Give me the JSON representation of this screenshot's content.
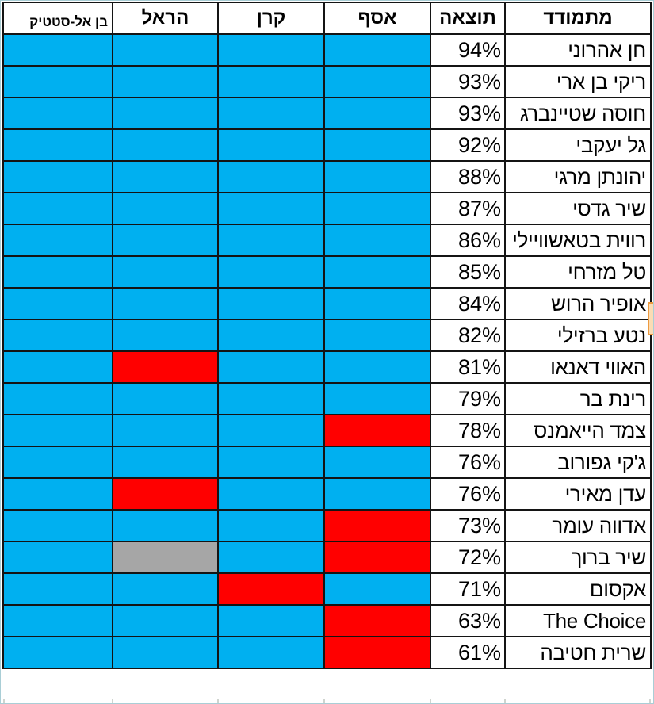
{
  "table": {
    "header": {
      "contestant": "מתמודד",
      "result": "תוצאה",
      "judges": [
        {
          "key": "asaf",
          "label": "אסף"
        },
        {
          "key": "keren",
          "label": "קרן"
        },
        {
          "key": "harel",
          "label": "הראל"
        },
        {
          "key": "ben-el-static",
          "label": "בן אל-סטטיק"
        }
      ]
    },
    "rows": [
      {
        "name": "חן אהרוני",
        "result": "94%",
        "votes": [
          "blue",
          "blue",
          "blue",
          "blue"
        ]
      },
      {
        "name": "ריקי בן ארי",
        "result": "93%",
        "votes": [
          "blue",
          "blue",
          "blue",
          "blue"
        ]
      },
      {
        "name": "חוסה שטיינברג",
        "result": "93%",
        "votes": [
          "blue",
          "blue",
          "blue",
          "blue"
        ]
      },
      {
        "name": "גל יעקבי",
        "result": "92%",
        "votes": [
          "blue",
          "blue",
          "blue",
          "blue"
        ]
      },
      {
        "name": "יהונתן מרגי",
        "result": "88%",
        "votes": [
          "blue",
          "blue",
          "blue",
          "blue"
        ]
      },
      {
        "name": "שיר גדסי",
        "result": "87%",
        "votes": [
          "blue",
          "blue",
          "blue",
          "blue"
        ]
      },
      {
        "name": "רווית בטאשוויילי",
        "result": "86%",
        "votes": [
          "blue",
          "blue",
          "blue",
          "blue"
        ]
      },
      {
        "name": "טל מזרחי",
        "result": "85%",
        "votes": [
          "blue",
          "blue",
          "blue",
          "blue"
        ]
      },
      {
        "name": "אופיר הרוש",
        "result": "84%",
        "votes": [
          "blue",
          "blue",
          "blue",
          "blue"
        ],
        "selection_fragment": true
      },
      {
        "name": "נטע ברזילי",
        "result": "82%",
        "votes": [
          "blue",
          "blue",
          "blue",
          "blue"
        ]
      },
      {
        "name": "האווי דאנאו",
        "result": "81%",
        "votes": [
          "blue",
          "blue",
          "red",
          "blue"
        ]
      },
      {
        "name": "רינת בר",
        "result": "79%",
        "votes": [
          "blue",
          "blue",
          "blue",
          "blue"
        ]
      },
      {
        "name": "צמד הייאמנס",
        "result": "78%",
        "votes": [
          "red",
          "blue",
          "blue",
          "blue"
        ]
      },
      {
        "name": "ג'קי גפורוב",
        "result": "76%",
        "votes": [
          "blue",
          "blue",
          "blue",
          "blue"
        ]
      },
      {
        "name": "עדן מאירי",
        "result": "76%",
        "votes": [
          "blue",
          "blue",
          "red",
          "blue"
        ]
      },
      {
        "name": "אדווה עומר",
        "result": "73%",
        "votes": [
          "red",
          "blue",
          "blue",
          "blue"
        ]
      },
      {
        "name": "שיר ברוך",
        "result": "72%",
        "votes": [
          "red",
          "blue",
          "gray",
          "blue"
        ]
      },
      {
        "name": "אקסום",
        "result": "71%",
        "votes": [
          "blue",
          "red",
          "blue",
          "blue"
        ]
      },
      {
        "name": "The Choice",
        "result": "63%",
        "votes": [
          "red",
          "blue",
          "blue",
          "blue"
        ]
      },
      {
        "name": "שרית חטיבה",
        "result": "61%",
        "votes": [
          "red",
          "blue",
          "blue",
          "blue"
        ]
      }
    ]
  },
  "colors": {
    "vote_blue": "#00B0F0",
    "vote_red": "#FF0000",
    "vote_gray": "#A6A6A6",
    "grid_border": "#141414",
    "frame_edge": "#A9CED6",
    "selection_fill": "#FBDCB4",
    "selection_border": "#ED9A3F"
  }
}
